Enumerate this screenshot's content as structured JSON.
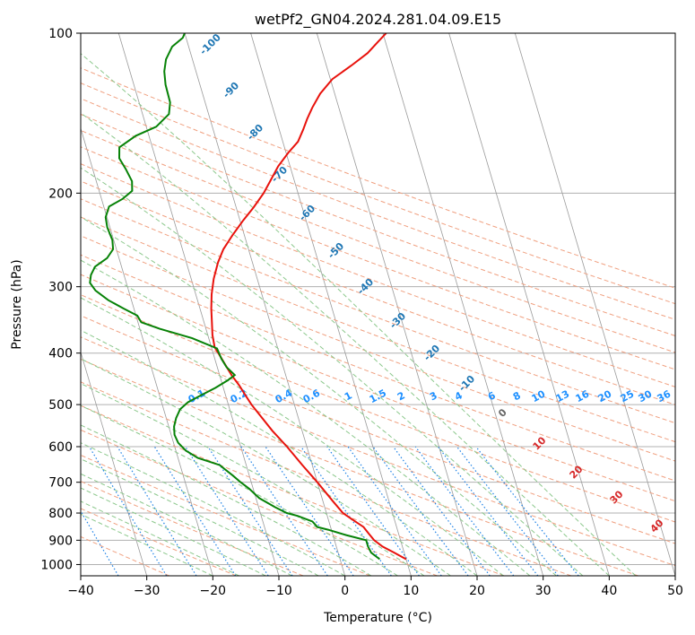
{
  "chart_data": {
    "type": "line",
    "title": "wetPf2_GN04.2024.281.04.09.E15",
    "xlabel": "Temperature (°C)",
    "ylabel": "Pressure (hPa)",
    "xlim": [
      -40,
      50
    ],
    "ylim": [
      1050,
      100
    ],
    "y_scale": "log",
    "grid": true,
    "x_ticks": [
      -40,
      -30,
      -20,
      -10,
      0,
      10,
      20,
      30,
      40,
      50
    ],
    "y_ticks": [
      100,
      200,
      300,
      400,
      500,
      600,
      700,
      800,
      900,
      1000
    ],
    "series": [
      {
        "color": "#e8120c",
        "points": [
          [
            10.0,
            977
          ],
          [
            8.5,
            950
          ],
          [
            7.0,
            925
          ],
          [
            6.0,
            900
          ],
          [
            5.5,
            875
          ],
          [
            5.0,
            850
          ],
          [
            3.5,
            820
          ],
          [
            2.5,
            800
          ],
          [
            1.5,
            760
          ],
          [
            0.0,
            700
          ],
          [
            -1.5,
            650
          ],
          [
            -3.0,
            600
          ],
          [
            -4.5,
            560
          ],
          [
            -5.8,
            520
          ],
          [
            -6.5,
            500
          ],
          [
            -7.0,
            480
          ],
          [
            -7.5,
            460
          ],
          [
            -8.2,
            440
          ],
          [
            -8.7,
            420
          ],
          [
            -9.2,
            400
          ],
          [
            -9.5,
            390
          ],
          [
            -9.3,
            370
          ],
          [
            -8.8,
            350
          ],
          [
            -8.3,
            330
          ],
          [
            -7.6,
            310
          ],
          [
            -6.6,
            290
          ],
          [
            -5.2,
            270
          ],
          [
            -3.8,
            255
          ],
          [
            -1.8,
            240
          ],
          [
            0.5,
            225
          ],
          [
            2.6,
            213
          ],
          [
            4.8,
            200
          ],
          [
            6.3,
            190
          ],
          [
            8.2,
            178
          ],
          [
            10.3,
            168
          ],
          [
            12.3,
            160
          ],
          [
            13.6,
            152
          ],
          [
            14.7,
            145
          ],
          [
            16.0,
            138
          ],
          [
            17.8,
            130
          ],
          [
            20.3,
            122
          ],
          [
            23.8,
            115
          ],
          [
            26.8,
            109
          ],
          [
            28.8,
            104
          ],
          [
            30.5,
            100
          ]
        ]
      },
      {
        "color": "#078207",
        "points": [
          [
            6.0,
            977
          ],
          [
            5.0,
            950
          ],
          [
            4.8,
            925
          ],
          [
            4.8,
            900
          ],
          [
            2.0,
            880
          ],
          [
            -0.5,
            860
          ],
          [
            -2.0,
            850
          ],
          [
            -2.5,
            830
          ],
          [
            -4.5,
            810
          ],
          [
            -6.0,
            800
          ],
          [
            -7.5,
            780
          ],
          [
            -9.5,
            750
          ],
          [
            -10.6,
            720
          ],
          [
            -11.6,
            700
          ],
          [
            -12.5,
            680
          ],
          [
            -13.5,
            660
          ],
          [
            -14.0,
            650
          ],
          [
            -15.5,
            640
          ],
          [
            -17.0,
            630
          ],
          [
            -18.5,
            610
          ],
          [
            -19.3,
            590
          ],
          [
            -19.5,
            570
          ],
          [
            -19.2,
            550
          ],
          [
            -18.5,
            530
          ],
          [
            -17.5,
            510
          ],
          [
            -16.0,
            495
          ],
          [
            -13.7,
            480
          ],
          [
            -11.2,
            465
          ],
          [
            -9.0,
            450
          ],
          [
            -7.7,
            440
          ],
          [
            -8.6,
            425
          ],
          [
            -9.0,
            410
          ],
          [
            -9.2,
            392
          ],
          [
            -12.5,
            375
          ],
          [
            -17.0,
            360
          ],
          [
            -19.5,
            350
          ],
          [
            -19.8,
            340
          ],
          [
            -21.5,
            330
          ],
          [
            -23.5,
            318
          ],
          [
            -25.0,
            305
          ],
          [
            -25.5,
            295
          ],
          [
            -25.0,
            285
          ],
          [
            -24.0,
            275
          ],
          [
            -21.8,
            265
          ],
          [
            -20.5,
            255
          ],
          [
            -20.2,
            245
          ],
          [
            -20.4,
            232
          ],
          [
            -20.2,
            222
          ],
          [
            -19.2,
            212
          ],
          [
            -16.8,
            205
          ],
          [
            -15.0,
            198
          ],
          [
            -14.6,
            190
          ],
          [
            -15.0,
            180
          ],
          [
            -15.5,
            172
          ],
          [
            -15.0,
            164
          ],
          [
            -12.0,
            156
          ],
          [
            -8.5,
            150
          ],
          [
            -6.0,
            142
          ],
          [
            -5.3,
            135
          ],
          [
            -5.2,
            125
          ],
          [
            -4.8,
            118
          ],
          [
            -4.0,
            112
          ],
          [
            -2.5,
            106
          ],
          [
            -0.5,
            102
          ],
          [
            0.0,
            100
          ]
        ]
      }
    ],
    "mixing_ratio_labels": [
      "0.1",
      "0.2",
      "0.4",
      "0.6",
      "1",
      "1.5",
      "2",
      "3",
      "4",
      "6",
      "8",
      "10",
      "13",
      "16",
      "20",
      "25",
      "30",
      "36"
    ],
    "dry_adiabat_labels": [
      "-100",
      "-90",
      "-80",
      "-70",
      "-60",
      "-50",
      "-40",
      "-30",
      "-20",
      "-10"
    ],
    "moist_adiabat_labels": [
      "0",
      "10",
      "20",
      "30",
      "40"
    ],
    "colors": {
      "isotherm": "#9a9a9a",
      "dry_adiabat": "#f0a080",
      "moist_adiabat": "#8cc88c",
      "mixing_ratio": "#1e82e6",
      "isobar_grid": "#b0b0b0",
      "dry_label": "#1f77b4",
      "moist_label": "#d62728",
      "mixing_label": "#1e90ff",
      "zero_label": "#666666"
    }
  }
}
